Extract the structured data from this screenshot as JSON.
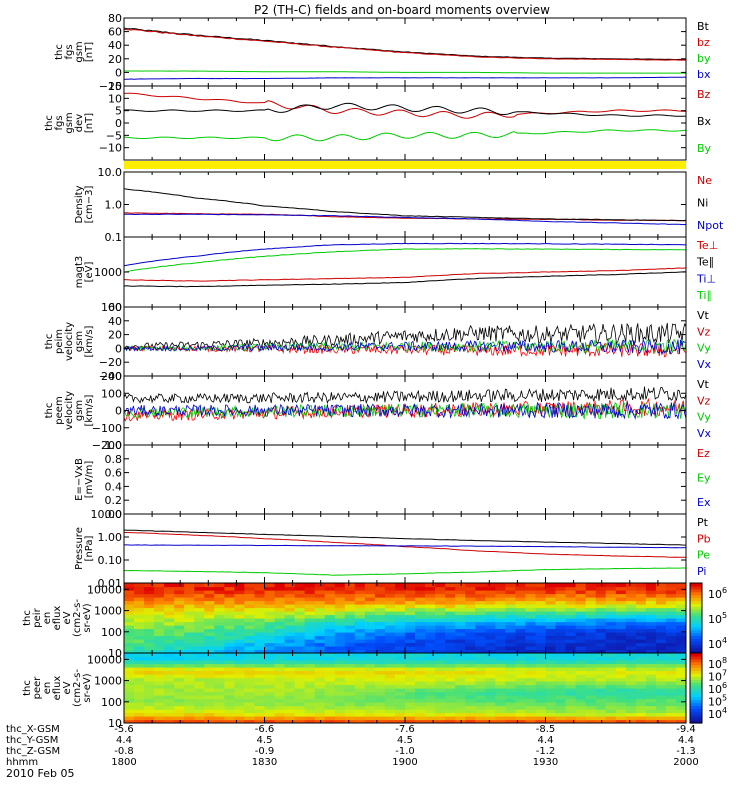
{
  "title": "P2 (TH-C) fields and on-board moments overview",
  "date_label": "2010 Feb 05",
  "colors": {
    "black": "#000000",
    "red": "#cc0000",
    "green": "#00cc00",
    "blue": "#0000cc",
    "yellow": "#ffee00",
    "bright_red": "#ff0000"
  },
  "panels": [
    {
      "id": "fgs-gsm",
      "ylabel": [
        "thc",
        "fgs",
        "gsm",
        "[nT]"
      ],
      "ticks": [
        {
          "v": 80,
          "l": "80"
        },
        {
          "v": 60,
          "l": "60"
        },
        {
          "v": 40,
          "l": "40"
        },
        {
          "v": 20,
          "l": "20"
        },
        {
          "v": 0,
          "l": "0"
        },
        {
          "v": -20,
          "l": "−20"
        }
      ],
      "legend": [
        {
          "t": "Bt",
          "c": "#000000"
        },
        {
          "t": "bz",
          "c": "#cc0000"
        },
        {
          "t": "by",
          "c": "#00cc00"
        },
        {
          "t": "bx",
          "c": "#0000cc"
        }
      ]
    },
    {
      "id": "fgs-gsm-dev",
      "ylabel": [
        "thc",
        "fgs",
        "gsm",
        "dev",
        "[nT]"
      ],
      "ticks": [
        {
          "v": 15,
          "l": "15"
        },
        {
          "v": 10,
          "l": "10"
        },
        {
          "v": 5,
          "l": "5"
        },
        {
          "v": 0,
          "l": "0"
        },
        {
          "v": -5,
          "l": "−5"
        },
        {
          "v": -10,
          "l": "−10"
        }
      ],
      "legend": [
        {
          "t": "Bz",
          "c": "#cc0000"
        },
        {
          "t": "Bx",
          "c": "#000000"
        },
        {
          "t": "By",
          "c": "#00cc00"
        }
      ]
    },
    {
      "id": "density",
      "ylabel": [
        "Density",
        "[cm−3]"
      ],
      "ticks": [
        {
          "v": 10,
          "l": "10.0"
        },
        {
          "v": 1,
          "l": "1.0"
        },
        {
          "v": 0.1,
          "l": "0.1"
        }
      ],
      "legend": [
        {
          "t": "Ne",
          "c": "#cc0000"
        },
        {
          "t": "Ni",
          "c": "#000000"
        },
        {
          "t": "Npot",
          "c": "#0000cc"
        }
      ]
    },
    {
      "id": "temperature",
      "ylabel": [
        "magt3",
        "[eV]"
      ],
      "ticks": [
        {
          "v": 10000,
          "l": ""
        },
        {
          "v": 1000,
          "l": "1000"
        },
        {
          "v": 100,
          "l": "100"
        }
      ],
      "legend": [
        {
          "t": "Te⊥",
          "c": "#cc0000"
        },
        {
          "t": "Te∥",
          "c": "#000000"
        },
        {
          "t": "Ti⊥",
          "c": "#0000cc"
        },
        {
          "t": "Ti∥",
          "c": "#00cc00"
        }
      ]
    },
    {
      "id": "peim-velocity",
      "ylabel": [
        "thc",
        "peim",
        "velocity",
        "gsm",
        "[km/s]"
      ],
      "ticks": [
        {
          "v": 60,
          "l": "60"
        },
        {
          "v": 40,
          "l": "40"
        },
        {
          "v": 20,
          "l": "20"
        },
        {
          "v": 0,
          "l": "0"
        },
        {
          "v": -20,
          "l": "−20"
        },
        {
          "v": -40,
          "l": "−40"
        }
      ],
      "legend": [
        {
          "t": "Vt",
          "c": "#000000"
        },
        {
          "t": "Vz",
          "c": "#cc0000"
        },
        {
          "t": "Vy",
          "c": "#00cc00"
        },
        {
          "t": "Vx",
          "c": "#0000cc"
        }
      ]
    },
    {
      "id": "peem-velocity",
      "ylabel": [
        "thc",
        "peem",
        "velocity",
        "gsm",
        "[km/s]"
      ],
      "ticks": [
        {
          "v": 200,
          "l": "200"
        },
        {
          "v": 100,
          "l": "100"
        },
        {
          "v": 0,
          "l": "0"
        },
        {
          "v": -100,
          "l": "−100"
        },
        {
          "v": -200,
          "l": "−200"
        }
      ],
      "legend": [
        {
          "t": "Vt",
          "c": "#000000"
        },
        {
          "t": "Vz",
          "c": "#cc0000"
        },
        {
          "t": "Vy",
          "c": "#00cc00"
        },
        {
          "t": "Vx",
          "c": "#0000cc"
        }
      ]
    },
    {
      "id": "efield",
      "ylabel": [
        "E=−VxB",
        "[mV/m]"
      ],
      "ticks": [
        {
          "v": 1.0,
          "l": "1.0"
        },
        {
          "v": 0.8,
          "l": "0.8"
        },
        {
          "v": 0.6,
          "l": "0.6"
        },
        {
          "v": 0.4,
          "l": "0.4"
        },
        {
          "v": 0.2,
          "l": "0.2"
        },
        {
          "v": 0.0,
          "l": "0.0"
        }
      ],
      "legend": [
        {
          "t": "Ez",
          "c": "#cc0000"
        },
        {
          "t": "Ey",
          "c": "#00cc00"
        },
        {
          "t": "Ex",
          "c": "#0000cc"
        }
      ]
    },
    {
      "id": "pressure",
      "ylabel": [
        "Pressure",
        "[nPa]"
      ],
      "ticks": [
        {
          "v": 10,
          "l": "10.00"
        },
        {
          "v": 1,
          "l": "1.00"
        },
        {
          "v": 0.1,
          "l": "0.10"
        },
        {
          "v": 0.01,
          "l": "0.01"
        }
      ],
      "legend": [
        {
          "t": "Pt",
          "c": "#000000"
        },
        {
          "t": "Pb",
          "c": "#cc0000"
        },
        {
          "t": "Pe",
          "c": "#00cc00"
        },
        {
          "t": "Pi",
          "c": "#0000cc"
        }
      ]
    },
    {
      "id": "peir-spectrogram",
      "ylabel": [
        "thc",
        "peir",
        "en",
        "eflux",
        "eV",
        "(cm2-s-",
        "sr-eV)"
      ],
      "ticks": [
        {
          "v": 10000,
          "l": "10000"
        },
        {
          "v": 1000,
          "l": "1000"
        },
        {
          "v": 100,
          "l": "100"
        },
        {
          "v": 10,
          "l": "10"
        }
      ],
      "colorbar": [
        {
          "e": "6",
          "l": "10"
        },
        {
          "e": "5",
          "l": "10"
        },
        {
          "e": "4",
          "l": "10"
        }
      ]
    },
    {
      "id": "peer-spectrogram",
      "ylabel": [
        "thc",
        "peer",
        "en",
        "eflux",
        "eV",
        "(cm2-s-",
        "sr-eV)"
      ],
      "ticks": [
        {
          "v": 10000,
          "l": "10000"
        },
        {
          "v": 1000,
          "l": "1000"
        },
        {
          "v": 100,
          "l": "100"
        },
        {
          "v": 10,
          "l": "10"
        }
      ],
      "colorbar": [
        {
          "e": "8",
          "l": "10"
        },
        {
          "e": "7",
          "l": "10"
        },
        {
          "e": "6",
          "l": "10"
        },
        {
          "e": "5",
          "l": "10"
        },
        {
          "e": "4",
          "l": "10"
        }
      ]
    }
  ],
  "x_axis": {
    "row_labels": [
      "thc_X-GSM",
      "thc_Y-GSM",
      "thc_Z-GSM",
      "hhmm"
    ],
    "columns": [
      {
        "x": "-5.6",
        "y": "4.4",
        "z": "-0.8",
        "t": "1800"
      },
      {
        "x": "-6.6",
        "y": "4.5",
        "z": "-0.9",
        "t": "1830"
      },
      {
        "x": "-7.6",
        "y": "4.5",
        "z": "-1.0",
        "t": "1900"
      },
      {
        "x": "-8.5",
        "y": "4.4",
        "z": "-1.2",
        "t": "1930"
      },
      {
        "x": "-9.4",
        "y": "4.4",
        "z": "-1.3",
        "t": "2000"
      }
    ]
  },
  "chart_data": [
    {
      "type": "line",
      "panel": "fgs-gsm",
      "x_unit": "hours from 18:00",
      "ylim": [
        -20,
        80
      ],
      "x": [
        0,
        0.25,
        0.5,
        0.75,
        1.0,
        1.25,
        1.5,
        1.75,
        2.0
      ],
      "series": [
        {
          "name": "Bt",
          "values": [
            65,
            55,
            47,
            38,
            30,
            24,
            21,
            20,
            19
          ]
        },
        {
          "name": "bz",
          "values": [
            64,
            54,
            46,
            37,
            29,
            23,
            20,
            19,
            18
          ]
        },
        {
          "name": "by",
          "values": [
            2,
            2,
            1,
            1,
            0,
            0,
            -1,
            -1,
            -1
          ]
        },
        {
          "name": "bx",
          "values": [
            -10,
            -9,
            -9,
            -8,
            -8,
            -8,
            -8,
            -8,
            -7
          ]
        }
      ]
    },
    {
      "type": "line",
      "panel": "fgs-gsm-dev",
      "x_unit": "hours from 18:00",
      "ylim": [
        -15,
        15
      ],
      "x": [
        0,
        0.25,
        0.5,
        0.75,
        1.0,
        1.25,
        1.5,
        1.75,
        2.0
      ],
      "series": [
        {
          "name": "Bz",
          "values": [
            12,
            10,
            8,
            5,
            4,
            3,
            4,
            5,
            5
          ]
        },
        {
          "name": "Bx",
          "values": [
            5,
            5,
            5,
            7,
            6,
            5,
            4,
            3,
            3
          ]
        },
        {
          "name": "By",
          "values": [
            -6,
            -6,
            -6,
            -6,
            -5,
            -5,
            -4,
            -3,
            -3
          ]
        }
      ]
    },
    {
      "type": "line",
      "panel": "density",
      "x_unit": "hours from 18:00",
      "ylim": [
        0.1,
        10
      ],
      "yscale": "log",
      "x": [
        0,
        0.25,
        0.5,
        0.75,
        1.0,
        1.25,
        1.5,
        1.75,
        2.0
      ],
      "series": [
        {
          "name": "Ne",
          "values": [
            0.55,
            0.52,
            0.5,
            0.42,
            0.38,
            0.36,
            0.35,
            0.33,
            0.32
          ]
        },
        {
          "name": "Ni",
          "values": [
            3.0,
            1.6,
            0.9,
            0.6,
            0.45,
            0.4,
            0.36,
            0.34,
            0.32
          ]
        },
        {
          "name": "Npot",
          "values": [
            0.5,
            0.5,
            0.48,
            0.45,
            0.4,
            0.36,
            0.3,
            0.27,
            0.24
          ]
        }
      ]
    },
    {
      "type": "line",
      "panel": "temperature",
      "x_unit": "hours from 18:00",
      "ylim": [
        100,
        10000
      ],
      "yscale": "log",
      "x": [
        0,
        0.25,
        0.5,
        0.75,
        1.0,
        1.25,
        1.5,
        1.75,
        2.0
      ],
      "series": [
        {
          "name": "Te⊥",
          "values": [
            600,
            550,
            600,
            650,
            700,
            900,
            1000,
            1100,
            1300
          ]
        },
        {
          "name": "Te∥",
          "values": [
            400,
            380,
            420,
            450,
            500,
            650,
            750,
            850,
            1000
          ]
        },
        {
          "name": "Ti⊥",
          "values": [
            1500,
            2800,
            4500,
            6000,
            6500,
            6500,
            6400,
            6200,
            6000
          ]
        },
        {
          "name": "Ti∥",
          "values": [
            1000,
            1800,
            2800,
            3800,
            4500,
            4600,
            4500,
            4400,
            4300
          ]
        }
      ]
    },
    {
      "type": "line",
      "panel": "peim-velocity",
      "x_unit": "hours from 18:00",
      "ylim": [
        -40,
        60
      ],
      "x": [
        0,
        0.25,
        0.5,
        0.75,
        1.0,
        1.25,
        1.5,
        1.75,
        2.0
      ],
      "series": [
        {
          "name": "Vt",
          "values": [
            3,
            5,
            8,
            12,
            18,
            22,
            20,
            22,
            21
          ]
        },
        {
          "name": "Vz",
          "values": [
            0,
            0,
            -1,
            -2,
            -2,
            -3,
            -3,
            -3,
            -3
          ]
        },
        {
          "name": "Vy",
          "values": [
            0,
            0,
            2,
            2,
            3,
            3,
            3,
            3,
            3
          ]
        },
        {
          "name": "Vx",
          "values": [
            0,
            0,
            1,
            2,
            3,
            3,
            3,
            2,
            2
          ]
        }
      ]
    },
    {
      "type": "line",
      "panel": "peem-velocity",
      "x_unit": "hours from 18:00",
      "ylim": [
        -200,
        200
      ],
      "x": [
        0,
        0.25,
        0.5,
        0.75,
        1.0,
        1.25,
        1.5,
        1.75,
        2.0
      ],
      "series": [
        {
          "name": "Vt",
          "values": [
            70,
            70,
            72,
            75,
            80,
            85,
            90,
            95,
            100
          ]
        },
        {
          "name": "Vz",
          "values": [
            -30,
            -25,
            -15,
            -5,
            0,
            5,
            10,
            15,
            20
          ]
        },
        {
          "name": "Vy",
          "values": [
            -10,
            -8,
            -5,
            -2,
            0,
            0,
            0,
            0,
            0
          ]
        },
        {
          "name": "Vx",
          "values": [
            0,
            0,
            0,
            0,
            0,
            0,
            0,
            0,
            0
          ]
        }
      ]
    },
    {
      "type": "line",
      "panel": "efield",
      "ylim": [
        0.0,
        1.0
      ],
      "series": [
        {
          "name": "Ez",
          "values": []
        },
        {
          "name": "Ey",
          "values": []
        },
        {
          "name": "Ex",
          "values": []
        }
      ]
    },
    {
      "type": "line",
      "panel": "pressure",
      "x_unit": "hours from 18:00",
      "ylim": [
        0.01,
        10
      ],
      "yscale": "log",
      "x": [
        0,
        0.25,
        0.5,
        0.75,
        1.0,
        1.25,
        1.5,
        1.75,
        2.0
      ],
      "series": [
        {
          "name": "Pt",
          "values": [
            2.0,
            1.6,
            1.3,
            1.05,
            0.85,
            0.7,
            0.6,
            0.52,
            0.45
          ]
        },
        {
          "name": "Pb",
          "values": [
            1.6,
            1.2,
            0.85,
            0.58,
            0.38,
            0.25,
            0.18,
            0.15,
            0.13
          ]
        },
        {
          "name": "Pe",
          "values": [
            0.035,
            0.032,
            0.028,
            0.022,
            0.025,
            0.03,
            0.038,
            0.042,
            0.045
          ]
        },
        {
          "name": "Pi",
          "values": [
            0.45,
            0.44,
            0.43,
            0.42,
            0.41,
            0.4,
            0.38,
            0.36,
            0.34
          ]
        }
      ]
    },
    {
      "type": "heatmap",
      "panel": "peir-spectrogram",
      "x_unit": "hours from 18:00",
      "ylim": [
        10,
        20000
      ],
      "yscale": "log",
      "x": [
        0,
        0.25,
        0.5,
        0.75,
        1.0,
        1.25,
        1.5,
        1.75,
        2.0
      ],
      "y": [
        10,
        30,
        100,
        300,
        1000,
        3000,
        10000
      ],
      "values_log10": [
        [
          5.0,
          4.8,
          4.5,
          4.3,
          4.2,
          4.1,
          4.0,
          4.0,
          4.0
        ],
        [
          5.2,
          5.0,
          4.7,
          4.4,
          4.2,
          4.1,
          4.1,
          4.0,
          4.0
        ],
        [
          5.3,
          5.2,
          5.0,
          4.6,
          4.4,
          4.3,
          4.2,
          4.1,
          4.1
        ],
        [
          5.4,
          5.4,
          5.3,
          5.0,
          4.8,
          4.7,
          4.6,
          4.5,
          4.5
        ],
        [
          5.6,
          5.6,
          5.6,
          5.5,
          5.4,
          5.3,
          5.3,
          5.2,
          5.2
        ],
        [
          5.9,
          5.9,
          5.9,
          5.9,
          5.9,
          5.9,
          5.8,
          5.8,
          5.8
        ],
        [
          6.2,
          6.2,
          6.2,
          6.2,
          6.2,
          6.2,
          6.2,
          6.2,
          6.2
        ]
      ]
    },
    {
      "type": "heatmap",
      "panel": "peer-spectrogram",
      "x_unit": "hours from 18:00",
      "ylim": [
        10,
        20000
      ],
      "yscale": "log",
      "x": [
        0,
        0.25,
        0.5,
        0.75,
        1.0,
        1.25,
        1.5,
        1.75,
        2.0
      ],
      "y": [
        10,
        30,
        100,
        300,
        1000,
        3000,
        10000
      ],
      "values_log10": [
        [
          7.9,
          7.9,
          7.9,
          7.9,
          7.9,
          7.9,
          7.9,
          7.9,
          7.9
        ],
        [
          6.8,
          6.8,
          6.7,
          6.7,
          6.6,
          6.6,
          6.5,
          6.5,
          6.5
        ],
        [
          6.4,
          6.4,
          6.4,
          6.3,
          6.3,
          6.2,
          6.2,
          6.2,
          6.2
        ],
        [
          6.5,
          6.5,
          6.5,
          6.4,
          6.2,
          6.0,
          5.9,
          5.8,
          5.8
        ],
        [
          6.5,
          6.5,
          6.6,
          6.6,
          6.7,
          6.6,
          6.5,
          6.5,
          6.5
        ],
        [
          7.0,
          7.0,
          7.0,
          6.9,
          6.9,
          6.9,
          6.8,
          6.8,
          6.8
        ],
        [
          5.4,
          5.4,
          5.5,
          5.5,
          5.5,
          5.5,
          5.5,
          5.6,
          5.6
        ]
      ]
    }
  ]
}
